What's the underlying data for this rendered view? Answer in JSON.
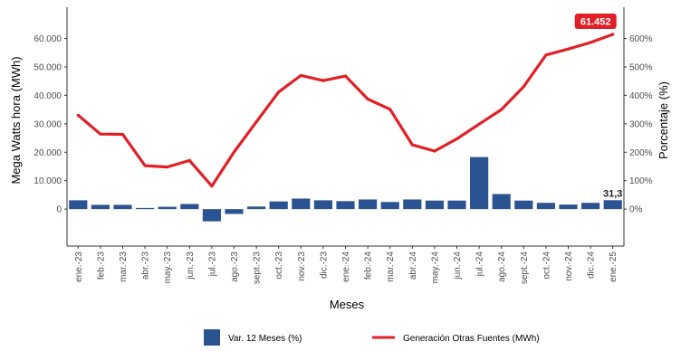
{
  "chart_data": {
    "type": "bar+line",
    "title": "",
    "xlabel": "Meses",
    "ylabel_left": "Mega Watts hora (MWh)",
    "ylabel_right": "Porcentaje (%)",
    "categories": [
      "ene.-23",
      "feb.-23",
      "mar.-23",
      "abr.-23",
      "may.-23",
      "jun.-23",
      "jul.-23",
      "ago.-23",
      "sept.-23",
      "oct.-23",
      "nov.-23",
      "dic.-23",
      "ene.-24",
      "feb.-24",
      "mar.-24",
      "abr.-24",
      "may.-24",
      "jun.-24",
      "jul.-24",
      "ago.-24",
      "sept.-24",
      "oct.-24",
      "nov.-24",
      "dic.-24",
      "ene.-25"
    ],
    "y_left": {
      "ylim": [
        -13000,
        71000
      ],
      "ticks": [
        0,
        10000,
        20000,
        30000,
        40000,
        50000,
        60000
      ],
      "tick_labels": [
        "0",
        "10.000",
        "20.000",
        "30.000",
        "40.000",
        "50.000",
        "60.000"
      ]
    },
    "y_right": {
      "ylim": [
        -130,
        710
      ],
      "ticks": [
        0,
        100,
        200,
        300,
        400,
        500,
        600
      ],
      "tick_labels": [
        "0%",
        "100%",
        "200%",
        "300%",
        "400%",
        "500%",
        "600%"
      ]
    },
    "series": [
      {
        "name": "Var. 12 Meses (%)",
        "type": "bar",
        "axis": "right",
        "color": "#2b5291",
        "values": [
          31,
          15,
          15,
          4,
          8,
          18,
          -43,
          -17,
          9,
          27,
          37,
          31,
          28,
          34,
          25,
          34,
          30,
          30,
          183,
          53,
          30,
          22,
          16,
          22,
          31.3
        ]
      },
      {
        "name": "Generación Otras Fuentes (MWh)",
        "type": "line",
        "axis": "left",
        "color": "#e02026",
        "values": [
          33000,
          26400,
          26300,
          15300,
          14800,
          17100,
          8100,
          20100,
          30700,
          41200,
          47000,
          45200,
          46800,
          38700,
          35100,
          22600,
          20400,
          24700,
          29900,
          35000,
          43100,
          54200,
          56300,
          58600,
          61452
        ]
      }
    ],
    "annotations": [
      {
        "series": "Generación Otras Fuentes (MWh)",
        "category": "ene.-25",
        "label": "61.452"
      },
      {
        "series": "Var. 12 Meses (%)",
        "category": "ene.-25",
        "label": "31,3"
      }
    ],
    "legend_position": "bottom",
    "grid": false
  }
}
